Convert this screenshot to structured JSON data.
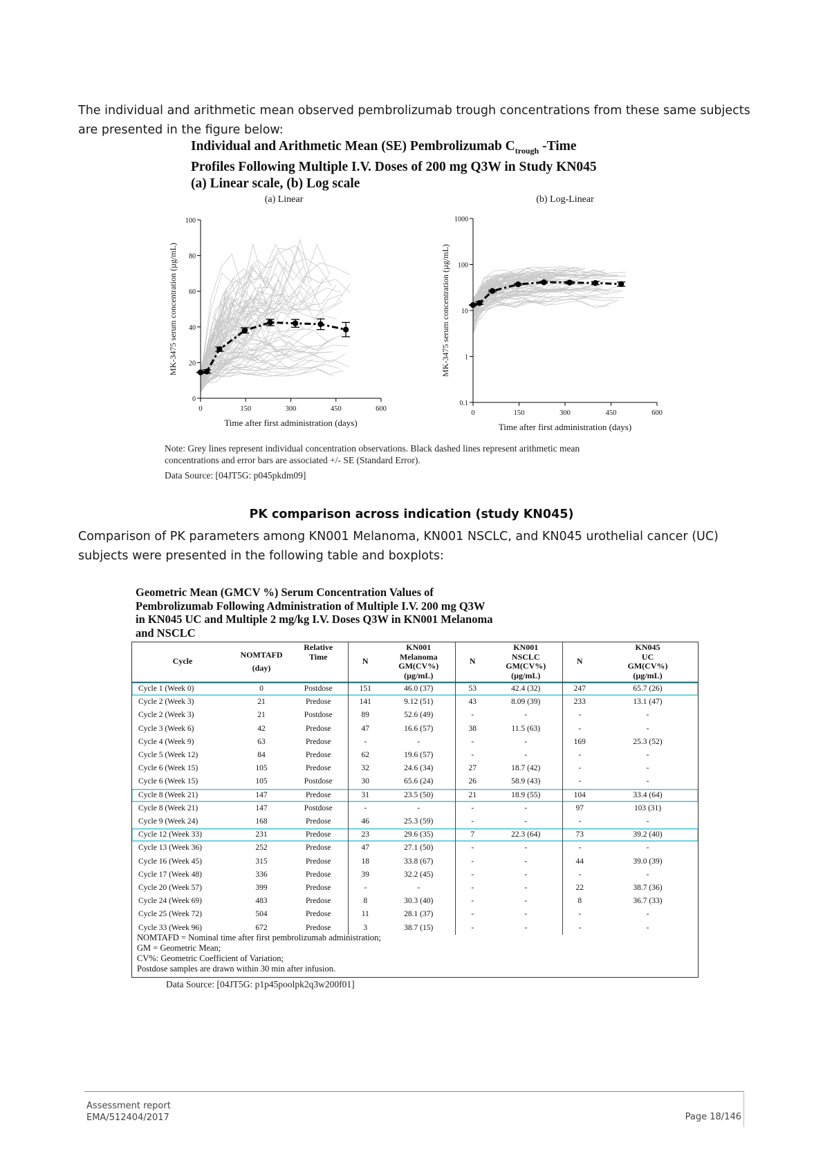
{
  "intro_paragraph": "The individual and arithmetic mean observed pembrolizumab trough concentrations from these same subjects are presented in the figure below:",
  "figure": {
    "title_line1_a": "Individual and Arithmetic Mean (SE) Pembrolizumab C",
    "title_line1_sub": "trough",
    "title_line1_b": " -Time",
    "title_line2": "Profiles Following Multiple I.V. Doses of 200 mg Q3W in Study KN045",
    "title_line3": "(a) Linear scale, (b) Log scale",
    "note_line1": "Note: Grey lines represent individual concentration observations. Black dashed lines represent arithmetic mean",
    "note_line2": "concentrations and error bars are associated +/- SE (Standard Error).",
    "data_source": "Data Source: [04JT5G: p045pkdm09]"
  },
  "chart_data": [
    {
      "type": "line",
      "title": "(a) Linear",
      "xlabel": "Time after first administration (days)",
      "ylabel": "MK-3475 serum concentration (µg/mL)",
      "xlim": [
        0,
        600
      ],
      "ylim": [
        0,
        100
      ],
      "x_ticks": [
        "0",
        "150",
        "300",
        "450",
        "600"
      ],
      "y_ticks": [
        "0",
        "20",
        "40",
        "60",
        "80",
        "100"
      ],
      "series": [
        {
          "x": [
            0,
            21,
            63,
            147,
            231,
            315,
            399,
            483
          ],
          "y": [
            14.5,
            15,
            27.5,
            38,
            42.5,
            42,
            41.5,
            38.5
          ],
          "se": [
            0,
            1,
            1.2,
            1.5,
            1.8,
            2.2,
            3,
            4
          ]
        }
      ]
    },
    {
      "type": "line",
      "title": "(b) Log-Linear",
      "xlabel": "Time after first administration (days)",
      "ylabel": "MK-3475 serum concentration (µg/mL)",
      "yscale": "log",
      "xlim": [
        0,
        600
      ],
      "ylim": [
        0.1,
        1000
      ],
      "x_ticks": [
        "0",
        "150",
        "300",
        "450",
        "600"
      ],
      "y_ticks": [
        "0.1",
        "1",
        "10",
        "100",
        "1000"
      ],
      "series": [
        {
          "x": [
            0,
            21,
            63,
            147,
            231,
            315,
            399,
            483
          ],
          "y": [
            13.1,
            14.5,
            26.5,
            37,
            41,
            40.5,
            39.5,
            37.5
          ],
          "se": [
            0,
            1,
            1.2,
            1.5,
            1.8,
            2.2,
            3,
            4
          ]
        }
      ]
    }
  ],
  "section_heading": "PK comparison across indication (study KN045)",
  "comparison_paragraph": "Comparison of PK parameters among KN001 Melanoma, KN001 NSCLC, and KN045 urothelial cancer (UC) subjects were presented in the following table and boxplots:",
  "table": {
    "title_lines": [
      "Geometric Mean (GMCV %) Serum Concentration Values of",
      "Pembrolizumab Following Administration of Multiple I.V. 200 mg Q3W",
      "in KN045 UC and Multiple 2 mg/kg I.V. Doses Q3W in KN001 Melanoma",
      "and NSCLC"
    ],
    "headers": {
      "cycle": "Cycle",
      "nomtafd": "NOMTAFD",
      "nomtafd_unit": "(day)",
      "rel_time_1": "Relative",
      "rel_time_2": "Time",
      "n": "N",
      "mel_1": "KN001",
      "mel_2": "Melanoma",
      "mel_3": "GM(CV%)",
      "mel_4": "(µg/mL)",
      "nsclc_1": "KN001",
      "nsclc_2": "NSCLC",
      "nsclc_3": "GM(CV%)",
      "nsclc_4": "(µg/mL)",
      "uc_1": "KN045",
      "uc_2": "UC",
      "uc_3": "GM(CV%)",
      "uc_4": "(µg/mL)"
    },
    "rows": [
      {
        "cycle": "Cycle 1 (Week 0)",
        "day": "0",
        "rel": "Postdose",
        "n1": "151",
        "gm1": "46.0 (37)",
        "n2": "53",
        "gm2": "42.4 (32)",
        "n3": "247",
        "gm3": "65.7 (26)",
        "highlight": true
      },
      {
        "cycle": "Cycle 2 (Week 3)",
        "day": "21",
        "rel": "Predose",
        "n1": "141",
        "gm1": "9.12 (51)",
        "n2": "43",
        "gm2": "8.09 (39)",
        "n3": "233",
        "gm3": "13.1 (47)",
        "highlight": false
      },
      {
        "cycle": "Cycle 2 (Week 3)",
        "day": "21",
        "rel": "Postdose",
        "n1": "89",
        "gm1": "52.6 (49)",
        "n2": "-",
        "gm2": "-",
        "n3": "-",
        "gm3": "-",
        "highlight": false
      },
      {
        "cycle": "Cycle 3 (Week 6)",
        "day": "42",
        "rel": "Predose",
        "n1": "47",
        "gm1": "16.6 (57)",
        "n2": "38",
        "gm2": "11.5 (63)",
        "n3": "-",
        "gm3": "-",
        "highlight": false
      },
      {
        "cycle": "Cycle 4 (Week 9)",
        "day": "63",
        "rel": "Predose",
        "n1": "-",
        "gm1": "-",
        "n2": "-",
        "gm2": "-",
        "n3": "169",
        "gm3": "25.3 (52)",
        "highlight": false
      },
      {
        "cycle": "Cycle 5 (Week 12)",
        "day": "84",
        "rel": "Predose",
        "n1": "62",
        "gm1": "19.6 (57)",
        "n2": "-",
        "gm2": "-",
        "n3": "-",
        "gm3": "-",
        "highlight": false
      },
      {
        "cycle": "Cycle 6 (Week 15)",
        "day": "105",
        "rel": "Predose",
        "n1": "32",
        "gm1": "24.6 (34)",
        "n2": "27",
        "gm2": "18.7 (42)",
        "n3": "-",
        "gm3": "-",
        "highlight": false
      },
      {
        "cycle": "Cycle 6 (Week 15)",
        "day": "105",
        "rel": "Postdose",
        "n1": "30",
        "gm1": "65.6 (24)",
        "n2": "26",
        "gm2": "58.9 (43)",
        "n3": "-",
        "gm3": "-",
        "highlight": false
      },
      {
        "cycle": "Cycle 8 (Week 21)",
        "day": "147",
        "rel": "Predose",
        "n1": "31",
        "gm1": "23.5 (50)",
        "n2": "21",
        "gm2": "18.9 (55)",
        "n3": "104",
        "gm3": "33.4 (64)",
        "highlight": true
      },
      {
        "cycle": "Cycle 8 (Week 21)",
        "day": "147",
        "rel": "Postdose",
        "n1": "-",
        "gm1": "-",
        "n2": "-",
        "gm2": "-",
        "n3": "97",
        "gm3": "103 (31)",
        "highlight": false
      },
      {
        "cycle": "Cycle 9 (Week 24)",
        "day": "168",
        "rel": "Predose",
        "n1": "46",
        "gm1": "25.3 (59)",
        "n2": "-",
        "gm2": "-",
        "n3": "-",
        "gm3": "-",
        "highlight": false
      },
      {
        "cycle": "Cycle 12 (Week 33)",
        "day": "231",
        "rel": "Predose",
        "n1": "23",
        "gm1": "29.6 (35)",
        "n2": "7",
        "gm2": "22.3 (64)",
        "n3": "73",
        "gm3": "39.2 (40)",
        "highlight": true
      },
      {
        "cycle": "Cycle 13 (Week 36)",
        "day": "252",
        "rel": "Predose",
        "n1": "47",
        "gm1": "27.1 (50)",
        "n2": "-",
        "gm2": "-",
        "n3": "-",
        "gm3": "-",
        "highlight": false
      },
      {
        "cycle": "Cycle 16 (Week 45)",
        "day": "315",
        "rel": "Predose",
        "n1": "18",
        "gm1": "33.8 (67)",
        "n2": "-",
        "gm2": "-",
        "n3": "44",
        "gm3": "39.0 (39)",
        "highlight": false
      },
      {
        "cycle": "Cycle 17 (Week 48)",
        "day": "336",
        "rel": "Predose",
        "n1": "39",
        "gm1": "32.2 (45)",
        "n2": "-",
        "gm2": "-",
        "n3": "-",
        "gm3": "-",
        "highlight": false
      },
      {
        "cycle": "Cycle 20 (Week 57)",
        "day": "399",
        "rel": "Predose",
        "n1": "-",
        "gm1": "-",
        "n2": "-",
        "gm2": "-",
        "n3": "22",
        "gm3": "38.7 (36)",
        "highlight": false
      },
      {
        "cycle": "Cycle 24 (Week 69)",
        "day": "483",
        "rel": "Predose",
        "n1": "8",
        "gm1": "30.3 (40)",
        "n2": "-",
        "gm2": "-",
        "n3": "8",
        "gm3": "36.7 (33)",
        "highlight": false
      },
      {
        "cycle": "Cycle 25 (Week 72)",
        "day": "504",
        "rel": "Predose",
        "n1": "11",
        "gm1": "28.1 (37)",
        "n2": "-",
        "gm2": "-",
        "n3": "-",
        "gm3": "-",
        "highlight": false
      },
      {
        "cycle": "Cycle 33 (Week 96)",
        "day": "672",
        "rel": "Predose",
        "n1": "3",
        "gm1": "38.7 (15)",
        "n2": "-",
        "gm2": "-",
        "n3": "-",
        "gm3": "-",
        "highlight": false
      }
    ],
    "footnotes": [
      "NOMTAFD = Nominal time after first pembrolizumab administration;",
      "GM = Geometric Mean;",
      "CV%: Geometric Coefficient of Variation;",
      "Postdose samples are drawn within 30 min after infusion."
    ],
    "data_source": "Data Source:   [04JT5G: p1p45poolpk2q3w200f01]"
  },
  "footer": {
    "line1": "Assessment report",
    "line2": "EMA/512404/2017",
    "page": "Page 18/146"
  },
  "colors": {
    "highlight": "#3ec6d6",
    "individual_lines": "#c8c8c8",
    "mean_line": "#000000"
  }
}
